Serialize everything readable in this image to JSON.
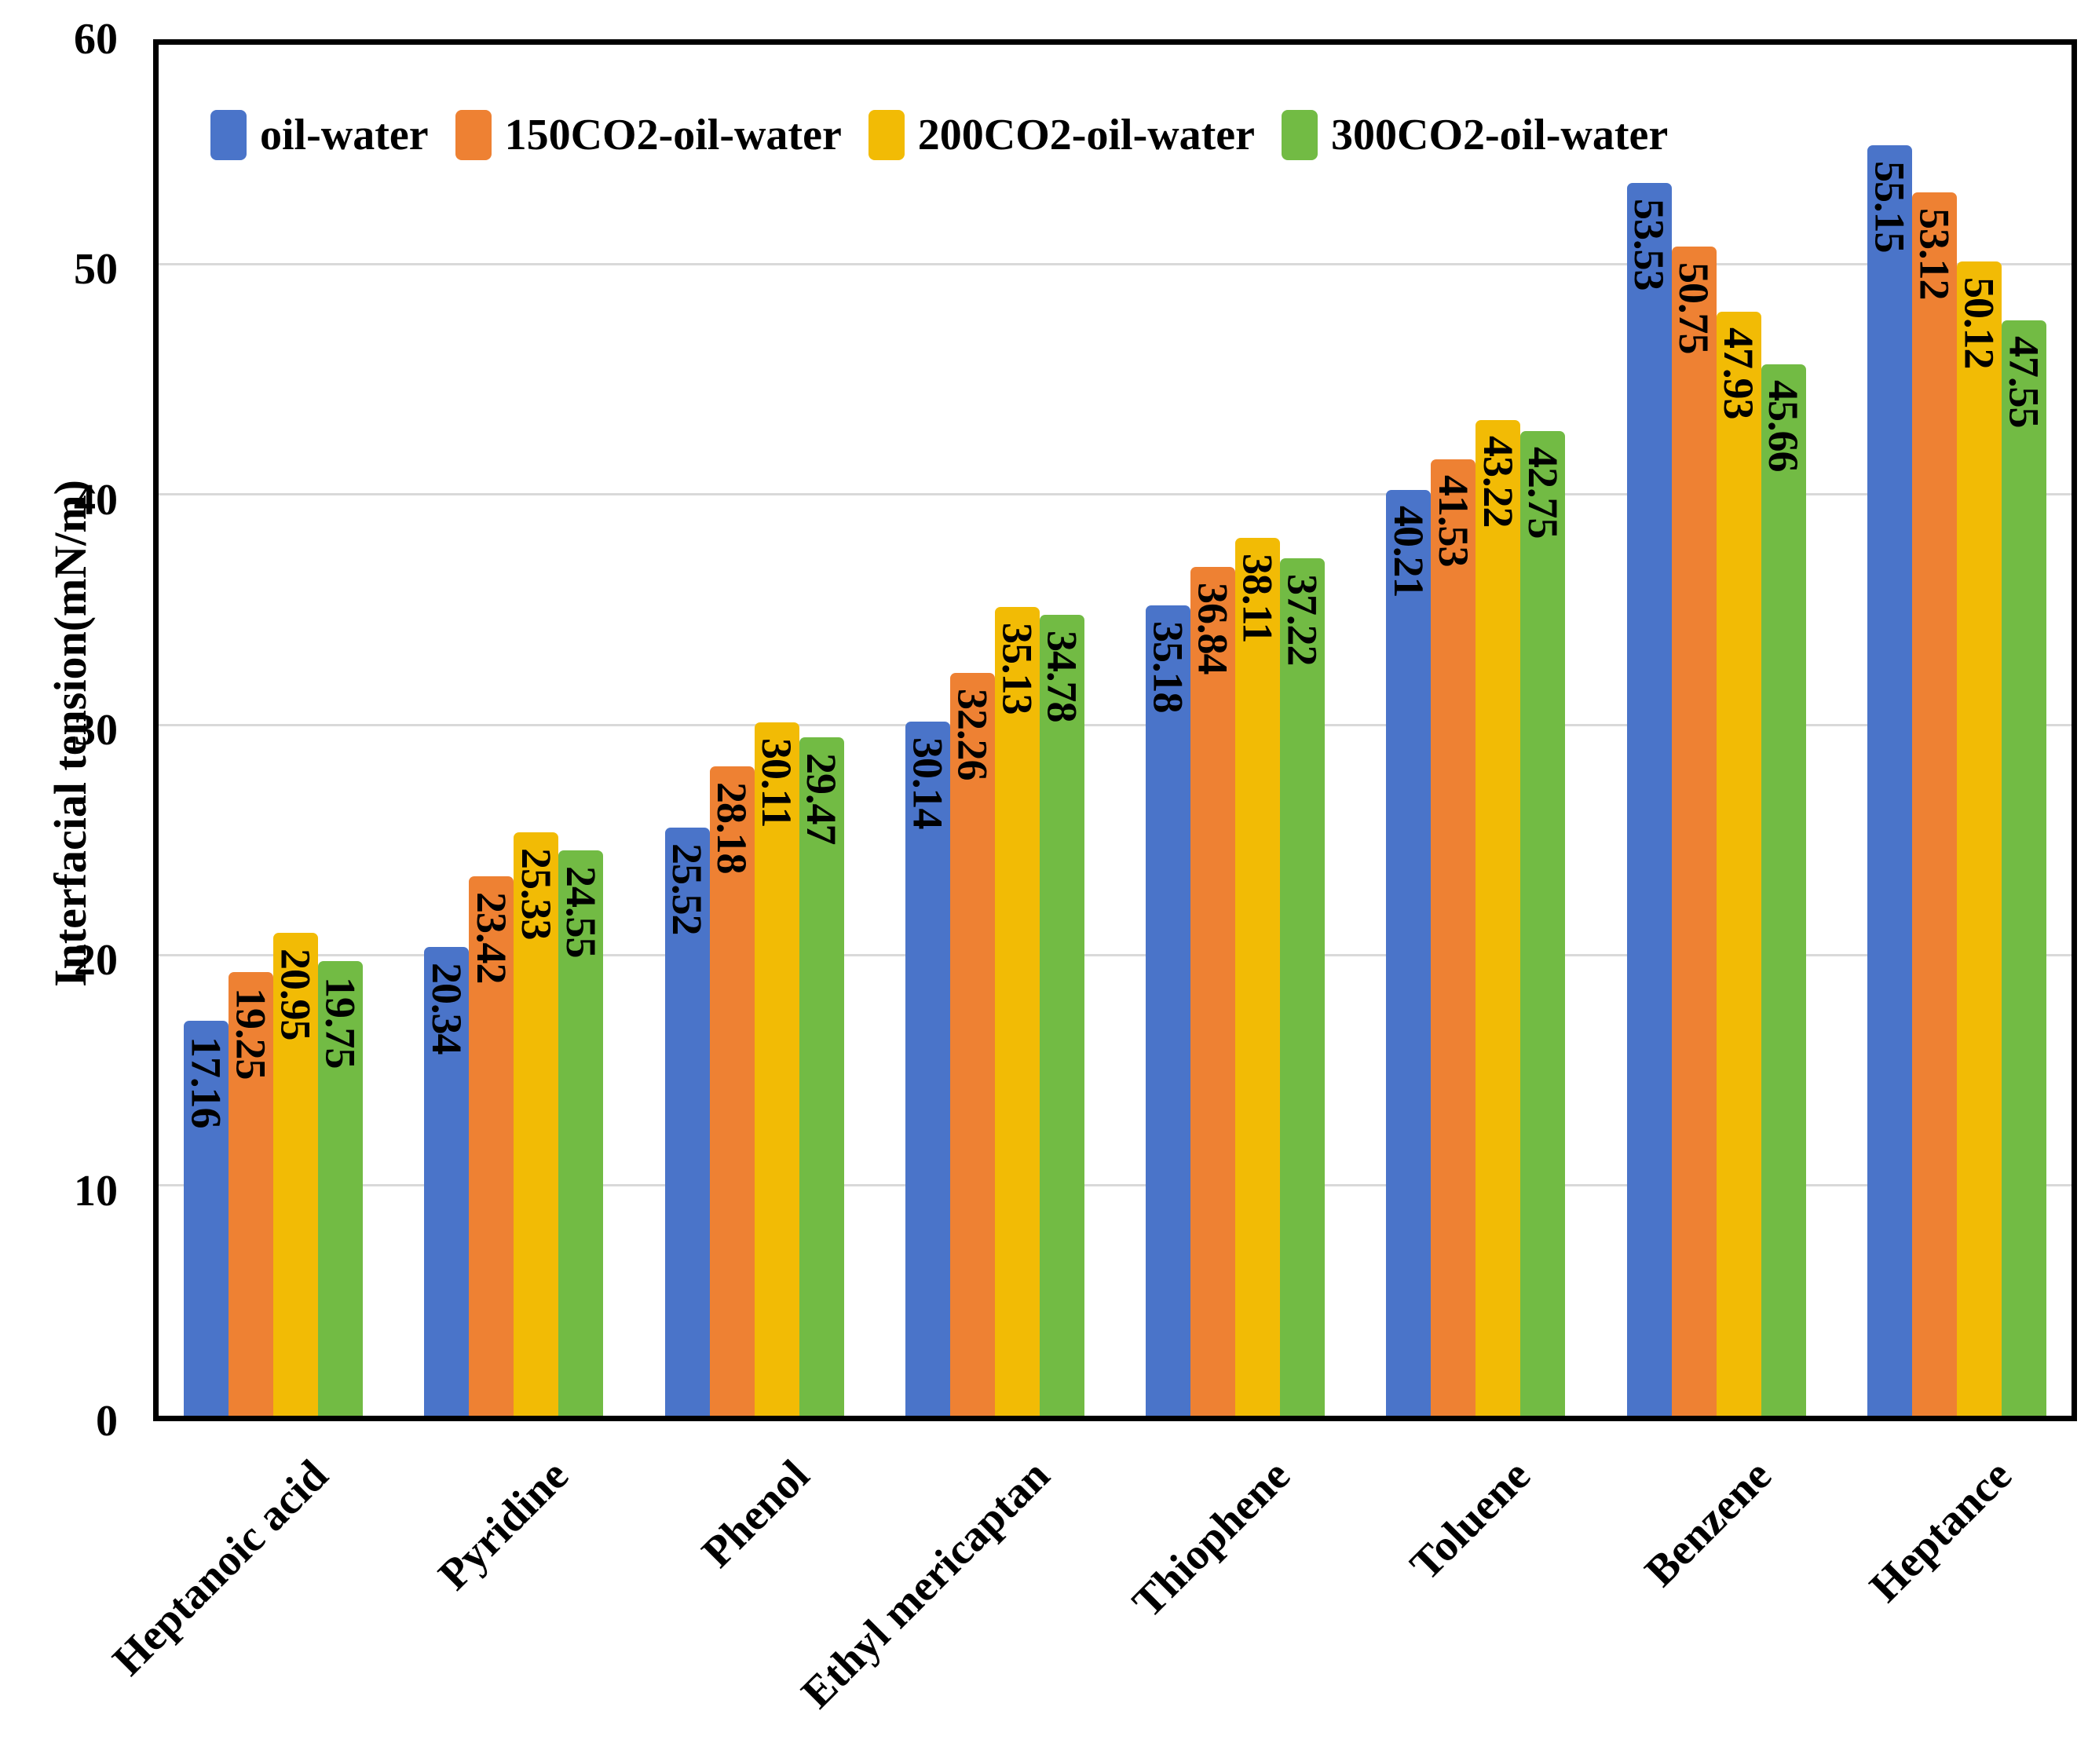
{
  "chart_data": {
    "type": "bar",
    "title": "",
    "categories": [
      "Heptanoic acid",
      "Pyridine",
      "Phenol",
      "Ethyl mericaptan",
      "Thiophene",
      "Toluene",
      "Benzene",
      "Heptance"
    ],
    "series": [
      {
        "name": "oil-water",
        "color": "#4a74c9",
        "values": [
          17.16,
          20.34,
          25.52,
          30.14,
          35.18,
          40.21,
          53.53,
          55.15
        ]
      },
      {
        "name": "150CO2-oil-water",
        "color": "#ee8133",
        "values": [
          19.25,
          23.42,
          28.18,
          32.26,
          36.84,
          41.53,
          50.75,
          53.12
        ]
      },
      {
        "name": "200CO2-oil-water",
        "color": "#f2bb05",
        "values": [
          20.95,
          25.33,
          30.11,
          35.13,
          38.11,
          43.22,
          47.93,
          50.12
        ]
      },
      {
        "name": "300CO2-oil-water",
        "color": "#72bb44",
        "values": [
          19.75,
          24.55,
          29.47,
          34.78,
          37.22,
          42.75,
          45.66,
          47.55
        ]
      }
    ],
    "xlabel": "",
    "ylabel": "Interfacial tension(mN/m)",
    "ylim": [
      0,
      60
    ],
    "yticks": [
      0,
      10,
      20,
      30,
      40,
      50,
      60
    ],
    "grid": "horizontal",
    "gridline_color": "#d9d9d9",
    "axis_color": "#000000",
    "value_label_color": "#000000",
    "value_label_style": "rotated vertical, inside end of bar",
    "legend_position": "top-left inside",
    "value_label_format": "2 decimals"
  }
}
